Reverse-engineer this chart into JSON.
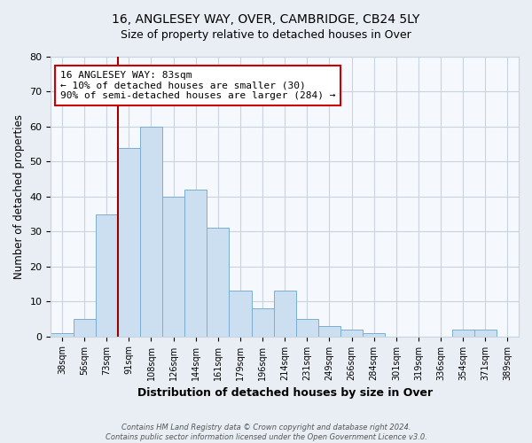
{
  "title": "16, ANGLESEY WAY, OVER, CAMBRIDGE, CB24 5LY",
  "subtitle": "Size of property relative to detached houses in Over",
  "xlabel": "Distribution of detached houses by size in Over",
  "ylabel": "Number of detached properties",
  "categories": [
    "38sqm",
    "56sqm",
    "73sqm",
    "91sqm",
    "108sqm",
    "126sqm",
    "144sqm",
    "161sqm",
    "179sqm",
    "196sqm",
    "214sqm",
    "231sqm",
    "249sqm",
    "266sqm",
    "284sqm",
    "301sqm",
    "319sqm",
    "336sqm",
    "354sqm",
    "371sqm",
    "389sqm"
  ],
  "values": [
    1,
    5,
    35,
    54,
    60,
    40,
    42,
    31,
    13,
    8,
    13,
    5,
    3,
    2,
    1,
    0,
    0,
    0,
    2,
    2,
    0
  ],
  "bar_color": "#ccdff0",
  "bar_edge_color": "#7aaed0",
  "property_line_color": "#990000",
  "annotation_text": "16 ANGLESEY WAY: 83sqm\n← 10% of detached houses are smaller (30)\n90% of semi-detached houses are larger (284) →",
  "annotation_box_color": "#ffffff",
  "annotation_box_edge": "#cc0000",
  "ylim": [
    0,
    80
  ],
  "yticks": [
    0,
    10,
    20,
    30,
    40,
    50,
    60,
    70,
    80
  ],
  "footer_line1": "Contains HM Land Registry data © Crown copyright and database right 2024.",
  "footer_line2": "Contains public sector information licensed under the Open Government Licence v3.0.",
  "bg_color": "#e8eef4",
  "plot_bg_color": "#f5f8fc",
  "grid_color": "#c8d4e0",
  "title_fontsize": 10,
  "subtitle_fontsize": 9
}
